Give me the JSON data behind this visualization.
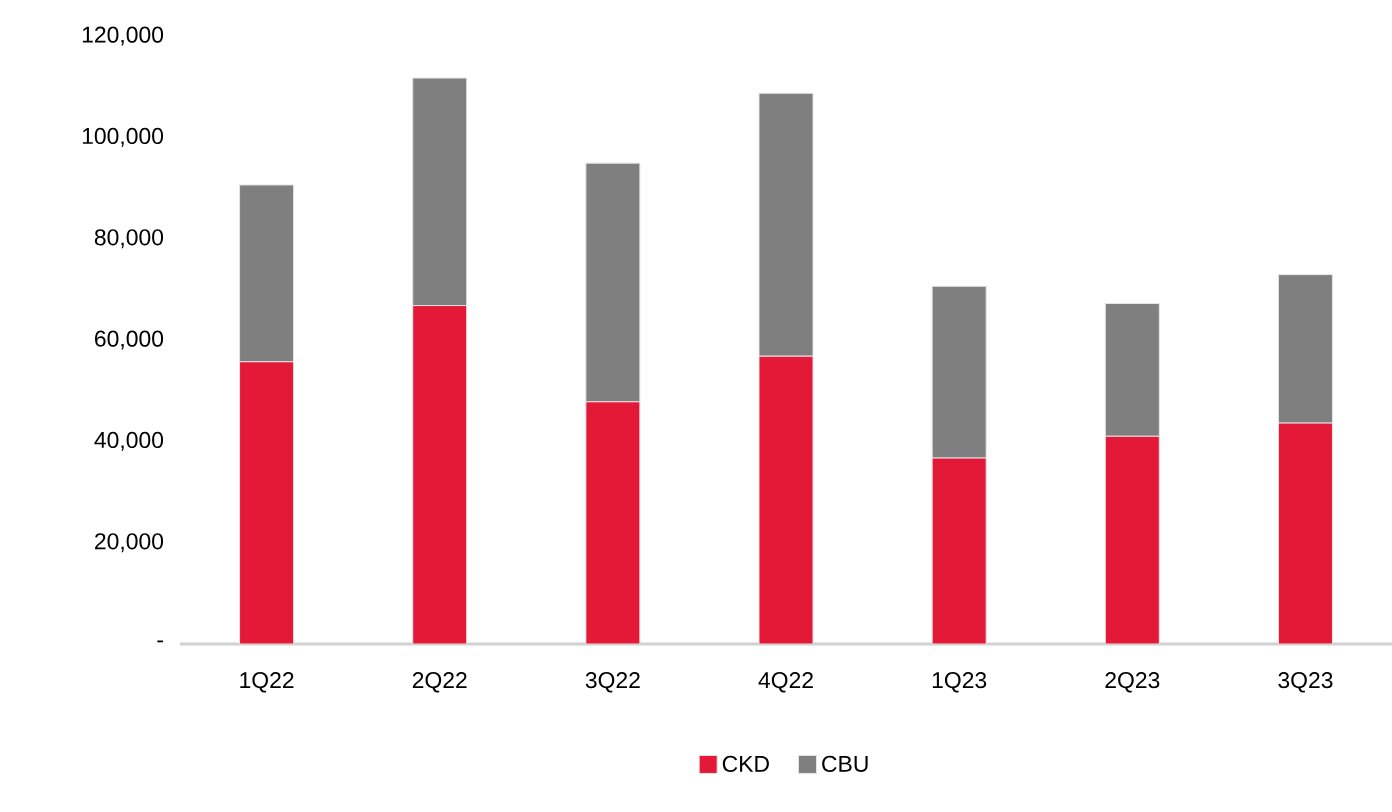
{
  "chart_data": {
    "type": "bar",
    "stacked": true,
    "categories": [
      "1Q22",
      "2Q22",
      "3Q22",
      "4Q22",
      "1Q23",
      "2Q23",
      "3Q23"
    ],
    "series": [
      {
        "name": "CKD",
        "color": "#e31937",
        "values": [
          55700,
          66800,
          47800,
          56800,
          36700,
          41000,
          43600
        ]
      },
      {
        "name": "CBU",
        "color": "#7f7f7f",
        "values": [
          34900,
          44900,
          47100,
          51900,
          33900,
          26200,
          29300
        ]
      }
    ],
    "ylim": [
      0,
      120000
    ],
    "yticks": [
      {
        "value": 0,
        "label": "-"
      },
      {
        "value": 20000,
        "label": "20,000"
      },
      {
        "value": 40000,
        "label": "40,000"
      },
      {
        "value": 60000,
        "label": "60,000"
      },
      {
        "value": 80000,
        "label": "80,000"
      },
      {
        "value": 100000,
        "label": "100,000"
      },
      {
        "value": 120000,
        "label": "120,000"
      }
    ],
    "grid": false,
    "legend": "bottom"
  }
}
